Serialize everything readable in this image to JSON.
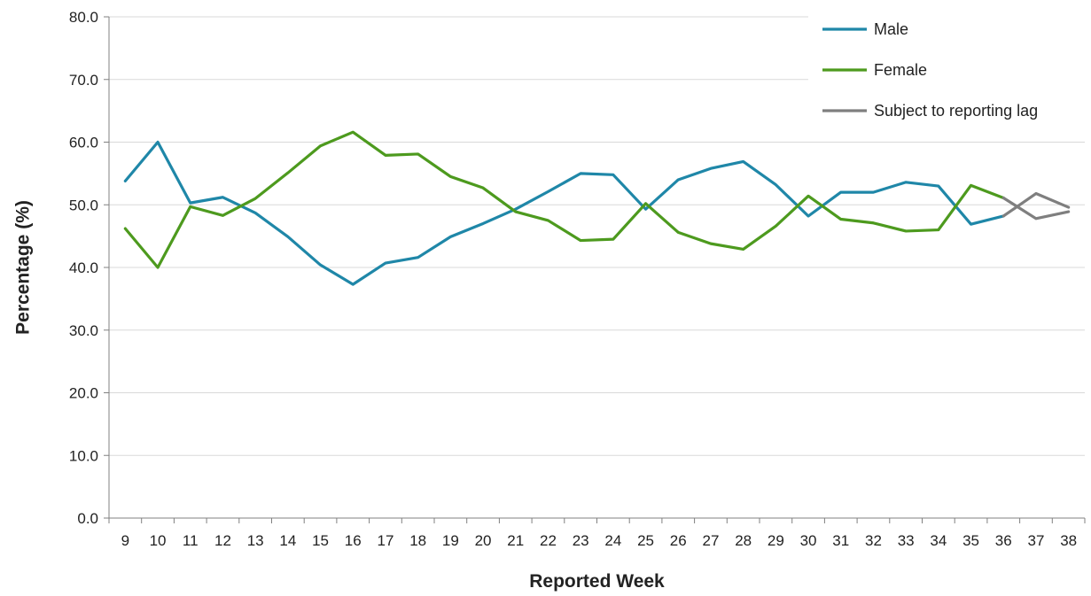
{
  "chart_data": {
    "type": "line",
    "xlabel": "Reported Week",
    "ylabel": "Percentage (%)",
    "ylim": [
      0,
      80
    ],
    "yticks": [
      "0.0",
      "10.0",
      "20.0",
      "30.0",
      "40.0",
      "50.0",
      "60.0",
      "70.0",
      "80.0"
    ],
    "categories": [
      "9",
      "10",
      "11",
      "12",
      "13",
      "14",
      "15",
      "16",
      "17",
      "18",
      "19",
      "20",
      "21",
      "22",
      "23",
      "24",
      "25",
      "26",
      "27",
      "28",
      "29",
      "30",
      "31",
      "32",
      "33",
      "34",
      "35",
      "36",
      "37",
      "38"
    ],
    "grid": true,
    "legend_position": "top-right",
    "series": [
      {
        "name": "Male",
        "color": "#1f87a8",
        "values": [
          53.8,
          60.0,
          50.3,
          51.2,
          48.7,
          44.9,
          40.4,
          37.3,
          40.7,
          41.6,
          44.9,
          47.0,
          49.3,
          52.1,
          55.0,
          54.8,
          49.3,
          54.0,
          55.8,
          56.9,
          53.2,
          48.2,
          52.0,
          52.0,
          53.6,
          53.0,
          46.9,
          48.2,
          null,
          null
        ]
      },
      {
        "name": "Female",
        "color": "#4d9a1e",
        "values": [
          46.2,
          40.0,
          49.7,
          48.3,
          51.0,
          55.1,
          59.4,
          61.6,
          57.9,
          58.1,
          54.5,
          52.7,
          48.9,
          47.5,
          44.3,
          44.5,
          50.2,
          45.6,
          43.8,
          42.9,
          46.6,
          51.4,
          47.7,
          47.1,
          45.8,
          46.0,
          53.1,
          51.1,
          null,
          null
        ]
      },
      {
        "name": "Subject to reporting lag",
        "color": "#7f7f7f",
        "segments": [
          {
            "x": [
              "36",
              "37",
              "38"
            ],
            "values": [
              48.2,
              51.8,
              49.6
            ]
          },
          {
            "x": [
              "36",
              "37",
              "38"
            ],
            "values": [
              51.1,
              47.8,
              48.9
            ]
          }
        ]
      }
    ]
  }
}
